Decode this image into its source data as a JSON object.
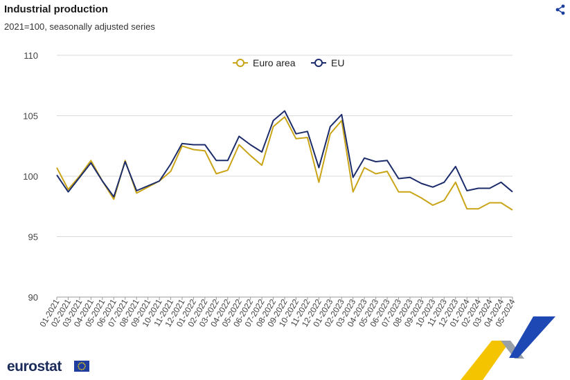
{
  "header": {
    "title": "Industrial production",
    "subtitle": "2021=100, seasonally adjusted series"
  },
  "brand": {
    "name": "eurostat"
  },
  "colors": {
    "euro_area": "#c9a416",
    "eu": "#1c2c6b",
    "grid": "#d9d9d9"
  },
  "chart_data": {
    "type": "line",
    "title": "Industrial production",
    "subtitle": "2021=100, seasonally adjusted series",
    "xlabel": "",
    "ylabel": "",
    "ylim": [
      90,
      110
    ],
    "yticks": [
      90,
      95,
      100,
      105,
      110
    ],
    "grid": true,
    "legend_position": "top-center",
    "categories": [
      "01-2021",
      "02-2021",
      "03-2021",
      "04-2021",
      "05-2021",
      "06-2021",
      "07-2021",
      "08-2021",
      "09-2021",
      "10-2021",
      "11-2021",
      "12-2021",
      "01-2022",
      "02-2022",
      "03-2022",
      "04-2022",
      "05-2022",
      "06-2022",
      "07-2022",
      "08-2022",
      "09-2022",
      "10-2022",
      "11-2022",
      "12-2022",
      "01-2023",
      "02-2023",
      "03-2023",
      "04-2023",
      "05-2023",
      "06-2023",
      "07-2023",
      "08-2023",
      "09-2023",
      "10-2023",
      "11-2023",
      "12-2023",
      "01-2024",
      "02-2024",
      "03-2024",
      "04-2024",
      "05-2024"
    ],
    "series": [
      {
        "name": "Euro area",
        "color": "#c9a416",
        "values": [
          100.7,
          98.9,
          100.0,
          101.3,
          99.6,
          98.1,
          101.3,
          98.6,
          99.1,
          99.6,
          100.4,
          102.5,
          102.2,
          102.1,
          100.2,
          100.5,
          102.6,
          101.7,
          100.9,
          104.1,
          104.9,
          103.1,
          103.2,
          99.5,
          103.5,
          104.6,
          98.7,
          100.7,
          100.2,
          100.4,
          98.7,
          98.7,
          98.2,
          97.6,
          98.0,
          99.5,
          97.3,
          97.3,
          97.8,
          97.8,
          97.2
        ]
      },
      {
        "name": "EU",
        "color": "#1c2c6b",
        "values": [
          100.1,
          98.7,
          99.9,
          101.1,
          99.6,
          98.3,
          101.2,
          98.8,
          99.2,
          99.6,
          101.0,
          102.7,
          102.6,
          102.6,
          101.3,
          101.3,
          103.3,
          102.6,
          102.0,
          104.6,
          105.4,
          103.5,
          103.7,
          100.7,
          104.1,
          105.1,
          99.9,
          101.5,
          101.2,
          101.3,
          99.8,
          99.9,
          99.4,
          99.1,
          99.5,
          100.8,
          98.8,
          99.0,
          99.0,
          99.5,
          98.7
        ]
      }
    ]
  }
}
